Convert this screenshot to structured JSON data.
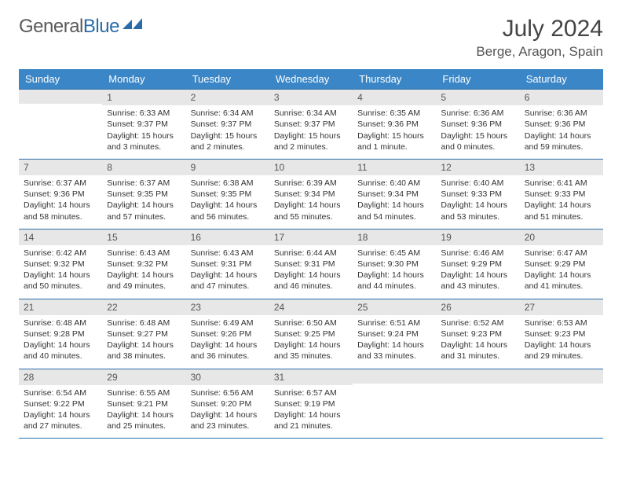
{
  "logo": {
    "textGray": "General",
    "textBlue": "Blue"
  },
  "title": "July 2024",
  "location": "Berge, Aragon, Spain",
  "colors": {
    "headerBg": "#3b86c6",
    "headerText": "#ffffff",
    "dayNumBg": "#e7e7e7",
    "borderColor": "#2b6ca8",
    "logoGray": "#5a5a5a",
    "logoBlue": "#2b6ca8"
  },
  "weekdays": [
    "Sunday",
    "Monday",
    "Tuesday",
    "Wednesday",
    "Thursday",
    "Friday",
    "Saturday"
  ],
  "weeks": [
    [
      {
        "n": "",
        "s": "",
        "u": "",
        "d": ""
      },
      {
        "n": "1",
        "s": "Sunrise: 6:33 AM",
        "u": "Sunset: 9:37 PM",
        "d": "Daylight: 15 hours and 3 minutes."
      },
      {
        "n": "2",
        "s": "Sunrise: 6:34 AM",
        "u": "Sunset: 9:37 PM",
        "d": "Daylight: 15 hours and 2 minutes."
      },
      {
        "n": "3",
        "s": "Sunrise: 6:34 AM",
        "u": "Sunset: 9:37 PM",
        "d": "Daylight: 15 hours and 2 minutes."
      },
      {
        "n": "4",
        "s": "Sunrise: 6:35 AM",
        "u": "Sunset: 9:36 PM",
        "d": "Daylight: 15 hours and 1 minute."
      },
      {
        "n": "5",
        "s": "Sunrise: 6:36 AM",
        "u": "Sunset: 9:36 PM",
        "d": "Daylight: 15 hours and 0 minutes."
      },
      {
        "n": "6",
        "s": "Sunrise: 6:36 AM",
        "u": "Sunset: 9:36 PM",
        "d": "Daylight: 14 hours and 59 minutes."
      }
    ],
    [
      {
        "n": "7",
        "s": "Sunrise: 6:37 AM",
        "u": "Sunset: 9:36 PM",
        "d": "Daylight: 14 hours and 58 minutes."
      },
      {
        "n": "8",
        "s": "Sunrise: 6:37 AM",
        "u": "Sunset: 9:35 PM",
        "d": "Daylight: 14 hours and 57 minutes."
      },
      {
        "n": "9",
        "s": "Sunrise: 6:38 AM",
        "u": "Sunset: 9:35 PM",
        "d": "Daylight: 14 hours and 56 minutes."
      },
      {
        "n": "10",
        "s": "Sunrise: 6:39 AM",
        "u": "Sunset: 9:34 PM",
        "d": "Daylight: 14 hours and 55 minutes."
      },
      {
        "n": "11",
        "s": "Sunrise: 6:40 AM",
        "u": "Sunset: 9:34 PM",
        "d": "Daylight: 14 hours and 54 minutes."
      },
      {
        "n": "12",
        "s": "Sunrise: 6:40 AM",
        "u": "Sunset: 9:33 PM",
        "d": "Daylight: 14 hours and 53 minutes."
      },
      {
        "n": "13",
        "s": "Sunrise: 6:41 AM",
        "u": "Sunset: 9:33 PM",
        "d": "Daylight: 14 hours and 51 minutes."
      }
    ],
    [
      {
        "n": "14",
        "s": "Sunrise: 6:42 AM",
        "u": "Sunset: 9:32 PM",
        "d": "Daylight: 14 hours and 50 minutes."
      },
      {
        "n": "15",
        "s": "Sunrise: 6:43 AM",
        "u": "Sunset: 9:32 PM",
        "d": "Daylight: 14 hours and 49 minutes."
      },
      {
        "n": "16",
        "s": "Sunrise: 6:43 AM",
        "u": "Sunset: 9:31 PM",
        "d": "Daylight: 14 hours and 47 minutes."
      },
      {
        "n": "17",
        "s": "Sunrise: 6:44 AM",
        "u": "Sunset: 9:31 PM",
        "d": "Daylight: 14 hours and 46 minutes."
      },
      {
        "n": "18",
        "s": "Sunrise: 6:45 AM",
        "u": "Sunset: 9:30 PM",
        "d": "Daylight: 14 hours and 44 minutes."
      },
      {
        "n": "19",
        "s": "Sunrise: 6:46 AM",
        "u": "Sunset: 9:29 PM",
        "d": "Daylight: 14 hours and 43 minutes."
      },
      {
        "n": "20",
        "s": "Sunrise: 6:47 AM",
        "u": "Sunset: 9:29 PM",
        "d": "Daylight: 14 hours and 41 minutes."
      }
    ],
    [
      {
        "n": "21",
        "s": "Sunrise: 6:48 AM",
        "u": "Sunset: 9:28 PM",
        "d": "Daylight: 14 hours and 40 minutes."
      },
      {
        "n": "22",
        "s": "Sunrise: 6:48 AM",
        "u": "Sunset: 9:27 PM",
        "d": "Daylight: 14 hours and 38 minutes."
      },
      {
        "n": "23",
        "s": "Sunrise: 6:49 AM",
        "u": "Sunset: 9:26 PM",
        "d": "Daylight: 14 hours and 36 minutes."
      },
      {
        "n": "24",
        "s": "Sunrise: 6:50 AM",
        "u": "Sunset: 9:25 PM",
        "d": "Daylight: 14 hours and 35 minutes."
      },
      {
        "n": "25",
        "s": "Sunrise: 6:51 AM",
        "u": "Sunset: 9:24 PM",
        "d": "Daylight: 14 hours and 33 minutes."
      },
      {
        "n": "26",
        "s": "Sunrise: 6:52 AM",
        "u": "Sunset: 9:23 PM",
        "d": "Daylight: 14 hours and 31 minutes."
      },
      {
        "n": "27",
        "s": "Sunrise: 6:53 AM",
        "u": "Sunset: 9:23 PM",
        "d": "Daylight: 14 hours and 29 minutes."
      }
    ],
    [
      {
        "n": "28",
        "s": "Sunrise: 6:54 AM",
        "u": "Sunset: 9:22 PM",
        "d": "Daylight: 14 hours and 27 minutes."
      },
      {
        "n": "29",
        "s": "Sunrise: 6:55 AM",
        "u": "Sunset: 9:21 PM",
        "d": "Daylight: 14 hours and 25 minutes."
      },
      {
        "n": "30",
        "s": "Sunrise: 6:56 AM",
        "u": "Sunset: 9:20 PM",
        "d": "Daylight: 14 hours and 23 minutes."
      },
      {
        "n": "31",
        "s": "Sunrise: 6:57 AM",
        "u": "Sunset: 9:19 PM",
        "d": "Daylight: 14 hours and 21 minutes."
      },
      {
        "n": "",
        "s": "",
        "u": "",
        "d": ""
      },
      {
        "n": "",
        "s": "",
        "u": "",
        "d": ""
      },
      {
        "n": "",
        "s": "",
        "u": "",
        "d": ""
      }
    ]
  ]
}
